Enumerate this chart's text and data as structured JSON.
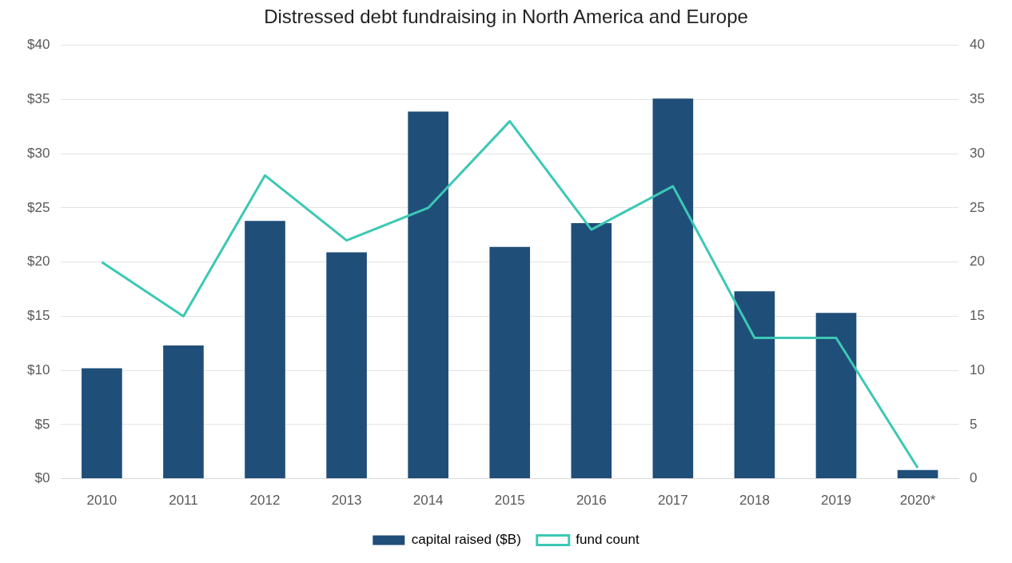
{
  "chart_data": {
    "type": "bar",
    "title": "Distressed debt fundraising in North America and Europe",
    "categories": [
      "2010",
      "2011",
      "2012",
      "2013",
      "2014",
      "2015",
      "2016",
      "2017",
      "2018",
      "2019",
      "2020*"
    ],
    "series": [
      {
        "name": "capital raised ($B)",
        "color": "#1f4e79",
        "values": [
          10.2,
          12.3,
          23.8,
          20.9,
          33.9,
          21.4,
          23.6,
          35.1,
          17.3,
          15.3,
          0.8
        ]
      },
      {
        "name": "fund count",
        "type": "line",
        "axis": "y2",
        "color": "#3cc8b4",
        "values": [
          20,
          15,
          28,
          22,
          25,
          33,
          23,
          27,
          13,
          13,
          1
        ]
      }
    ],
    "ylim": [
      0,
      40
    ],
    "yticks": [
      {
        "value": 0,
        "label": "$0"
      },
      {
        "value": 5,
        "label": "$5"
      },
      {
        "value": 10,
        "label": "$10"
      },
      {
        "value": 15,
        "label": "$15"
      },
      {
        "value": 20,
        "label": "$20"
      },
      {
        "value": 25,
        "label": "$25"
      },
      {
        "value": 30,
        "label": "$30"
      },
      {
        "value": 35,
        "label": "$35"
      },
      {
        "value": 40,
        "label": "$40"
      }
    ],
    "y2lim": [
      0,
      40
    ],
    "y2ticks": [
      0,
      5,
      10,
      15,
      20,
      25,
      30,
      35,
      40
    ],
    "grid": "y",
    "legend": "bottom",
    "marker": "none"
  }
}
